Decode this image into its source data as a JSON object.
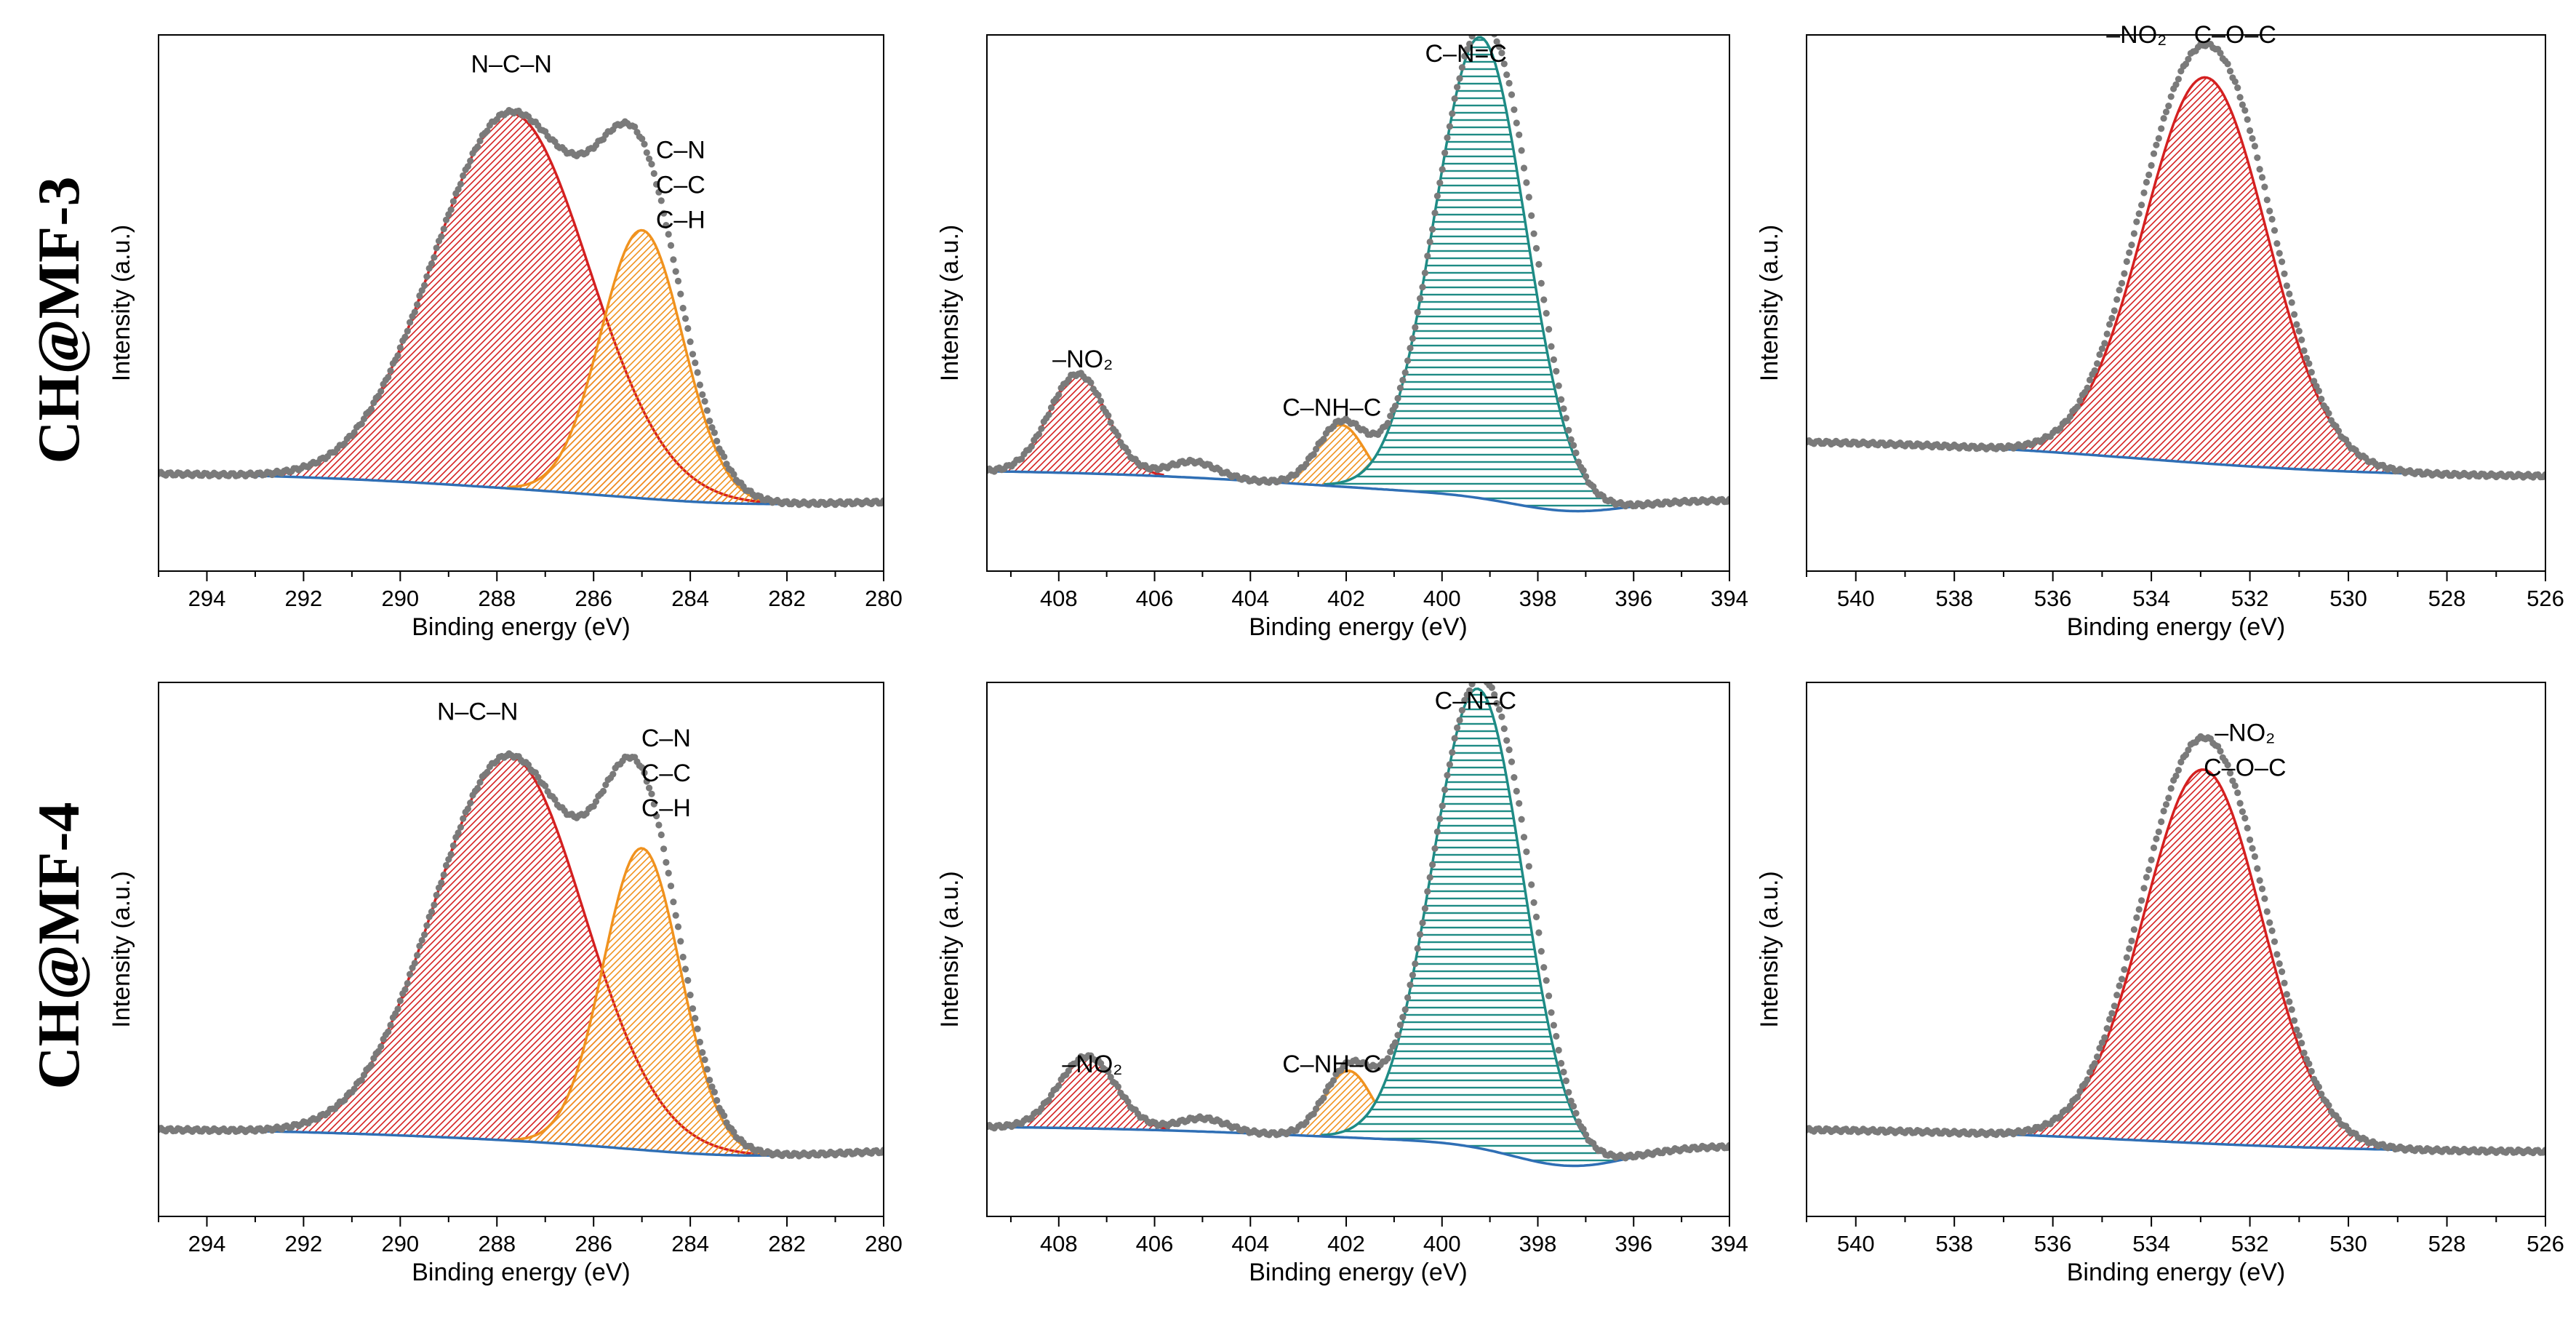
{
  "rows": [
    {
      "label": "CH@MF-3"
    },
    {
      "label": "CH@MF-4"
    }
  ],
  "colors": {
    "red": "#d42020",
    "orange": "#f0921e",
    "teal": "#1e8b85",
    "baseline": "#2f6fb5",
    "data": "#7a7a7a",
    "axis": "#000000"
  },
  "chart_data": [
    {
      "id": "c1-mf3",
      "type": "line",
      "row": 0,
      "col": 0,
      "title": "",
      "xlabel": "Binding energy (eV)",
      "ylabel": "Intensity (a.u.)",
      "xlim": [
        295,
        280
      ],
      "ylim": [
        0,
        1.0
      ],
      "xticks": [
        294,
        292,
        290,
        288,
        286,
        284,
        282,
        280
      ],
      "bg": {
        "left": 0.185,
        "right": 0.13,
        "dip": 0.01,
        "dipCenter": 283,
        "dipWidth": 2
      },
      "peaks": [
        {
          "name": "N–C–N",
          "center": 287.7,
          "height": 0.7,
          "width": 1.6,
          "color": "red",
          "fill": "diag"
        },
        {
          "name": "C–N / C–C / C–H",
          "center": 285.0,
          "height": 0.5,
          "width": 0.85,
          "color": "orange",
          "fill": "diag"
        }
      ],
      "labels": [
        {
          "lines": [
            "N–C–N"
          ],
          "x": 287.7,
          "y": 0.93
        },
        {
          "lines": [
            "C–N",
            "C–C",
            "C–H"
          ],
          "x": 284.2,
          "y": 0.77
        }
      ]
    },
    {
      "id": "c2-mf3",
      "type": "line",
      "row": 0,
      "col": 1,
      "title": "",
      "xlabel": "Binding energy (eV)",
      "ylabel": "Intensity (a.u.)",
      "xlim": [
        409.5,
        394
      ],
      "ylim": [
        0,
        1.0
      ],
      "xticks": [
        408,
        406,
        404,
        402,
        400,
        398,
        396,
        394
      ],
      "bg": {
        "left": 0.19,
        "right": 0.13,
        "dip": 0.025,
        "dipCenter": 397.3,
        "dipWidth": 1.2
      },
      "peaks": [
        {
          "name": "–NO2",
          "center": 407.6,
          "height": 0.185,
          "width": 0.6,
          "color": "red",
          "fill": "diag"
        },
        {
          "name": "C–NH–C",
          "center": 402.1,
          "height": 0.115,
          "width": 0.5,
          "color": "orange",
          "fill": "diag"
        },
        {
          "name": "C–N=C",
          "center": 399.2,
          "height": 0.86,
          "width": 0.95,
          "color": "teal",
          "fill": "horiz"
        }
      ],
      "extra": [
        {
          "center": 405.2,
          "height": 0.03,
          "width": 0.5
        },
        {
          "center": 398.3,
          "height": 0.09,
          "width": 0.55
        }
      ],
      "labels": [
        {
          "lines": [
            "–NO₂"
          ],
          "x": 407.5,
          "y": 0.38
        },
        {
          "lines": [
            "C–NH–C"
          ],
          "x": 402.3,
          "y": 0.29
        },
        {
          "lines": [
            "C–N=C"
          ],
          "x": 399.5,
          "y": 0.95
        }
      ]
    },
    {
      "id": "c3-mf3",
      "type": "line",
      "row": 0,
      "col": 2,
      "title": "",
      "xlabel": "Binding energy (eV)",
      "ylabel": "Intensity (a.u.)",
      "xlim": [
        541,
        526
      ],
      "ylim": [
        0,
        1.0
      ],
      "xticks": [
        540,
        538,
        536,
        534,
        532,
        530,
        528,
        526
      ],
      "bg": {
        "left": 0.245,
        "right": 0.175,
        "dip": 0.0,
        "dipCenter": 530,
        "dipWidth": 2
      },
      "peaks": [
        {
          "name": "–NO2 / C–O–C",
          "center": 532.9,
          "height": 0.72,
          "width": 1.25,
          "color": "red",
          "fill": "diag"
        }
      ],
      "extra": [
        {
          "center": 532.0,
          "height": 0.07,
          "width": 0.75
        },
        {
          "center": 533.9,
          "height": 0.06,
          "width": 0.8
        }
      ],
      "labels": [
        {
          "lines": [
            "–NO₂"
          ],
          "x": 534.3,
          "y": 0.985
        },
        {
          "lines": [
            "C–O–C"
          ],
          "x": 532.3,
          "y": 0.985
        }
      ]
    },
    {
      "id": "c4-mf4",
      "type": "line",
      "row": 1,
      "col": 0,
      "title": "",
      "xlabel": "Binding energy (eV)",
      "ylabel": "Intensity (a.u.)",
      "xlim": [
        295,
        280
      ],
      "ylim": [
        0,
        1.0
      ],
      "xticks": [
        294,
        292,
        290,
        288,
        286,
        284,
        282,
        280
      ],
      "bg": {
        "left": 0.165,
        "right": 0.125,
        "dip": 0.015,
        "dipCenter": 283,
        "dipWidth": 2
      },
      "peaks": [
        {
          "name": "N–C–N",
          "center": 287.75,
          "height": 0.72,
          "width": 1.55,
          "color": "red",
          "fill": "diag"
        },
        {
          "name": "C–N / C–C / C–H",
          "center": 285.0,
          "height": 0.565,
          "width": 0.8,
          "color": "orange",
          "fill": "diag"
        }
      ],
      "labels": [
        {
          "lines": [
            "N–C–N"
          ],
          "x": 288.4,
          "y": 0.93
        },
        {
          "lines": [
            "C–N",
            "C–C",
            "C–H"
          ],
          "x": 284.5,
          "y": 0.88
        }
      ]
    },
    {
      "id": "c5-mf4",
      "type": "line",
      "row": 1,
      "col": 1,
      "title": "",
      "xlabel": "Binding energy (eV)",
      "ylabel": "Intensity (a.u.)",
      "xlim": [
        409.5,
        394
      ],
      "ylim": [
        0,
        1.0
      ],
      "xticks": [
        408,
        406,
        404,
        402,
        400,
        398,
        396,
        394
      ],
      "bg": {
        "left": 0.17,
        "right": 0.13,
        "dip": 0.04,
        "dipCenter": 397.3,
        "dipWidth": 1.2
      },
      "peaks": [
        {
          "name": "–NO2",
          "center": 407.4,
          "height": 0.135,
          "width": 0.6,
          "color": "red",
          "fill": "diag"
        },
        {
          "name": "C–NH–C",
          "center": 401.95,
          "height": 0.125,
          "width": 0.5,
          "color": "orange",
          "fill": "diag"
        },
        {
          "name": "C–N=C",
          "center": 399.25,
          "height": 0.86,
          "width": 0.95,
          "color": "teal",
          "fill": "horiz"
        }
      ],
      "extra": [
        {
          "center": 405.0,
          "height": 0.025,
          "width": 0.5
        },
        {
          "center": 398.3,
          "height": 0.09,
          "width": 0.55
        }
      ],
      "labels": [
        {
          "lines": [
            "–NO₂"
          ],
          "x": 407.3,
          "y": 0.27
        },
        {
          "lines": [
            "C–NH–C"
          ],
          "x": 402.3,
          "y": 0.27
        },
        {
          "lines": [
            "C–N=C"
          ],
          "x": 399.3,
          "y": 0.95
        }
      ]
    },
    {
      "id": "c6-mf4",
      "type": "line",
      "row": 1,
      "col": 2,
      "title": "",
      "xlabel": "Binding energy (eV)",
      "ylabel": "Intensity (a.u.)",
      "xlim": [
        541,
        526
      ],
      "ylim": [
        0,
        1.0
      ],
      "xticks": [
        540,
        538,
        536,
        534,
        532,
        530,
        528,
        526
      ],
      "bg": {
        "left": 0.165,
        "right": 0.12,
        "dip": 0.0,
        "dipCenter": 530,
        "dipWidth": 2
      },
      "peaks": [
        {
          "name": "–NO2 / C–O–C",
          "center": 532.95,
          "height": 0.7,
          "width": 1.2,
          "color": "red",
          "fill": "diag"
        }
      ],
      "extra": [
        {
          "center": 532.1,
          "height": 0.06,
          "width": 0.75
        },
        {
          "center": 533.8,
          "height": 0.05,
          "width": 0.8
        }
      ],
      "labels": [
        {
          "lines": [
            "–NO₂",
            "C–O–C"
          ],
          "x": 532.1,
          "y": 0.89
        }
      ]
    }
  ]
}
